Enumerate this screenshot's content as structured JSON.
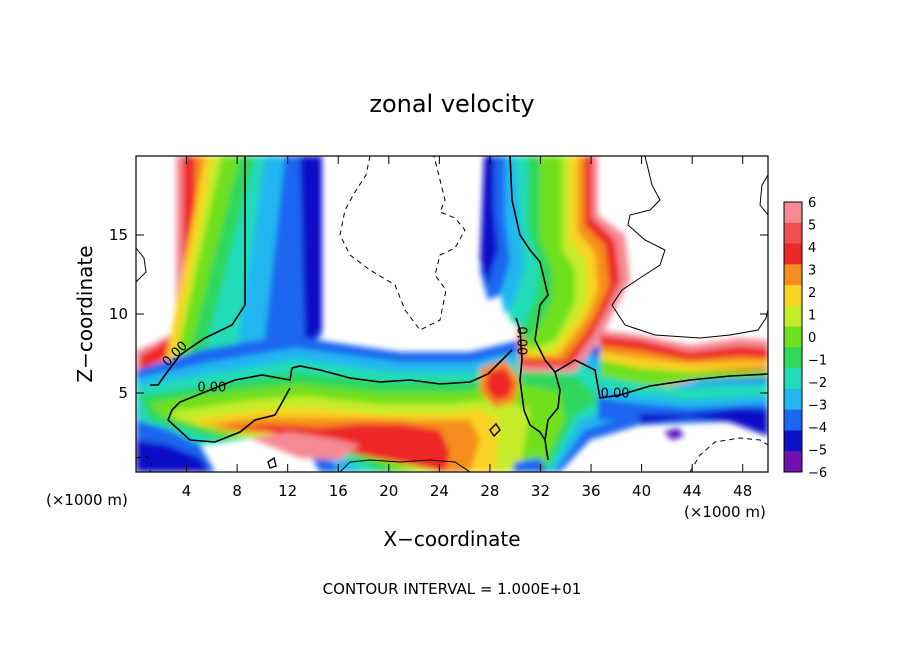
{
  "chart_data": {
    "type": "heatmap",
    "title": "zonal velocity",
    "xlabel": "X−coordinate",
    "ylabel": "Z−coordinate",
    "x_unit_left": "(×1000 m)",
    "x_unit_right": "(×1000 m)",
    "footer": "CONTOUR INTERVAL = 1.000E+01",
    "xlim": [
      0,
      50
    ],
    "ylim": [
      0,
      20
    ],
    "x_ticks": [
      4,
      8,
      12,
      16,
      20,
      24,
      28,
      32,
      36,
      40,
      44,
      48
    ],
    "y_ticks": [
      5,
      10,
      15
    ],
    "colorbar": {
      "min": -6,
      "max": 6,
      "levels": [
        6,
        5,
        4,
        3,
        2,
        1,
        0,
        -1,
        -2,
        -3,
        -4,
        -5,
        -6
      ],
      "colors": [
        "#f48a94",
        "#ef5050",
        "#ee2727",
        "#f58e1f",
        "#f9d322",
        "#c4ec2a",
        "#6fe01f",
        "#2fd75b",
        "#22dbb8",
        "#22b7f0",
        "#1d66f0",
        "#1010c8",
        "#7010b0"
      ]
    },
    "contour_labels": [
      {
        "text": "0.00",
        "x": 3.3,
        "z": 7.3
      },
      {
        "text": "0.00",
        "x": 6.0,
        "z": 5.1
      },
      {
        "text": "0.00",
        "x": 30.2,
        "z": 8.3
      },
      {
        "text": "0.00",
        "x": 37.9,
        "z": 4.7
      }
    ]
  }
}
